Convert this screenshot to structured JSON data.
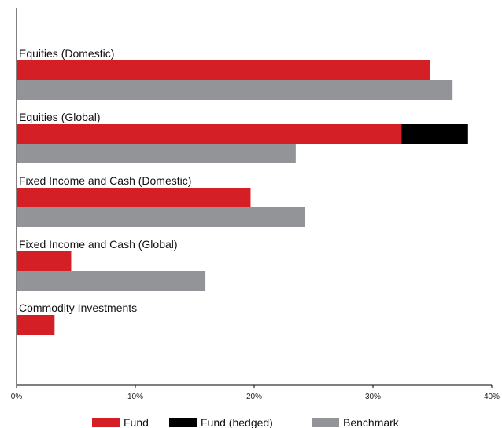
{
  "chart_data": {
    "type": "bar",
    "orientation": "horizontal",
    "stacked_fund": true,
    "categories": [
      "Equities (Domestic)",
      "Equities (Global)",
      "Fixed Income and Cash (Domestic)",
      "Fixed Income and Cash (Global)",
      "Commodity Investments"
    ],
    "series": [
      {
        "name": "Fund",
        "color": "#d41f26",
        "values": [
          34.8,
          32.4,
          19.7,
          4.6,
          3.2
        ]
      },
      {
        "name": "Fund (hedged)",
        "color": "#000000",
        "values": [
          0,
          5.6,
          0,
          0,
          0
        ]
      },
      {
        "name": "Benchmark",
        "color": "#929497",
        "values": [
          36.7,
          23.5,
          24.3,
          15.9,
          0
        ]
      }
    ],
    "x_ticks": [
      "0%",
      "10%",
      "20%",
      "30%",
      "40%"
    ],
    "xlim": [
      0,
      40
    ],
    "grid": false,
    "legend_position": "bottom"
  }
}
